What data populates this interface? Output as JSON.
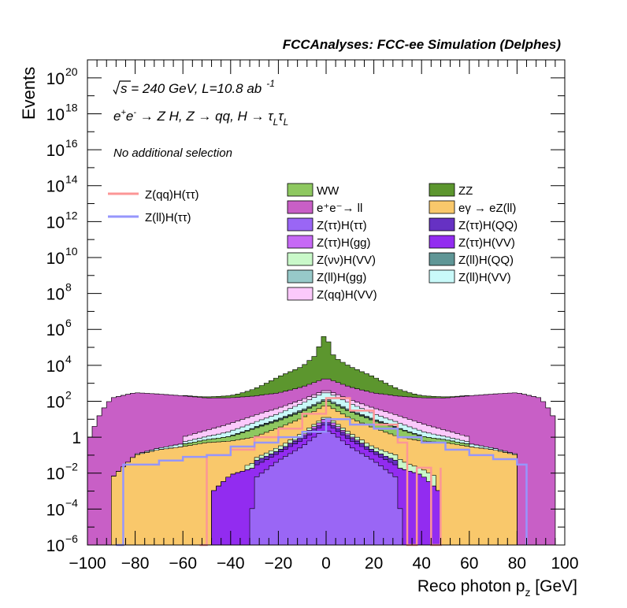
{
  "header": {
    "title": "FCCAnalyses: FCC-ee Simulation (Delphes)",
    "energy_sqrt": "s",
    "energy_rest": " = 240 GeV, L=10.8 ab",
    "energy_sup": "-1",
    "process_a": "e",
    "process_b": "e",
    "process_c": " → Z H, Z  → qq, H  → τ",
    "process_sub1": "L",
    "process_tau2": "τ",
    "process_sub2": "L",
    "selection": "No additional selection"
  },
  "colors": {
    "ee_ll": "#c85fc6",
    "egamma": "#f9c86b",
    "ww": "#8ec860",
    "zz": "#5c962e",
    "ztt_htt": "#9a66f5",
    "ztt_hqq": "#6631c3",
    "ztt_hgg": "#c669f5",
    "ztt_hvv": "#922cf0",
    "znn_hvv": "#c9f8c9",
    "zll_hqq": "#5f9696",
    "zll_hgg": "#97c9c9",
    "zll_hvv": "#c9f9f9",
    "zqq_hvv": "#fbc9fb",
    "sig_qq": "#fc9696",
    "sig_ll": "#9696fc"
  },
  "chart_data": {
    "type": "area",
    "xlabel_main": "Reco photon p",
    "xlabel_sub": "z",
    "xlabel_unit": " [GeV]",
    "ylabel": "Events",
    "xlim": [
      -100,
      100
    ],
    "ylim": [
      1e-06,
      1e+21
    ],
    "y_scale": "log",
    "x_ticks": [
      "−100",
      "−80",
      "−60",
      "−40",
      "−20",
      "0",
      "20",
      "40",
      "60",
      "80",
      "100"
    ],
    "y_ticks": [
      {
        "base": "10",
        "exp": "−6"
      },
      {
        "base": "10",
        "exp": "−4"
      },
      {
        "base": "10",
        "exp": "−2"
      },
      {
        "base": "1",
        "exp": ""
      },
      {
        "base": "10",
        "exp": "2"
      },
      {
        "base": "10",
        "exp": "4"
      },
      {
        "base": "10",
        "exp": "6"
      },
      {
        "base": "10",
        "exp": "8"
      },
      {
        "base": "10",
        "exp": "10"
      },
      {
        "base": "10",
        "exp": "12"
      },
      {
        "base": "10",
        "exp": "14"
      },
      {
        "base": "10",
        "exp": "16"
      },
      {
        "base": "10",
        "exp": "18"
      },
      {
        "base": "10",
        "exp": "20"
      }
    ],
    "legend_signals": [
      {
        "label": "Z(qq)H(ττ)",
        "color": "#fc9696"
      },
      {
        "label": "Z(ll)H(ττ)",
        "color": "#9696fc"
      }
    ],
    "legend_backgrounds": [
      {
        "label": "WW",
        "color": "#8ec860"
      },
      {
        "label": "ZZ",
        "color": "#5c962e"
      },
      {
        "label": "e⁺e⁻→ ll",
        "color": "#c85fc6"
      },
      {
        "label": "eγ  → eZ(ll)",
        "color": "#f9c86b"
      },
      {
        "label": "Z(ττ)H(ττ)",
        "color": "#9a66f5"
      },
      {
        "label": "Z(ττ)H(QQ)",
        "color": "#6631c3"
      },
      {
        "label": "Z(ττ)H(gg)",
        "color": "#c669f5"
      },
      {
        "label": "Z(ττ)H(VV)",
        "color": "#922cf0"
      },
      {
        "label": "Z(νν)H(VV)",
        "color": "#c9f8c9"
      },
      {
        "label": "Z(ll)H(QQ)",
        "color": "#5f9696"
      },
      {
        "label": "Z(ll)H(gg)",
        "color": "#97c9c9"
      },
      {
        "label": "Z(ll)H(VV)",
        "color": "#c9f9f9"
      },
      {
        "label": "Z(qq)H(VV)",
        "color": "#fbc9fb"
      }
    ],
    "stack_series": [
      {
        "name": "Z(ττ)H(ττ)",
        "key": "ztt_htt",
        "x": [
          -34,
          -30,
          -20,
          -10,
          -5,
          -2,
          0,
          2,
          5,
          10,
          20,
          30,
          34
        ],
        "y": [
          0,
          0.005,
          0.05,
          0.3,
          1,
          2,
          2.5,
          2,
          1,
          0.3,
          0.05,
          0.005,
          0
        ]
      },
      {
        "name": "Z(ττ)H(VV)",
        "key": "ztt_hvv",
        "x": [
          -48,
          -40,
          -30,
          -20,
          -10,
          0,
          10,
          20,
          30,
          40,
          48
        ],
        "y": [
          0.0008,
          0.008,
          0.02,
          0.08,
          0.4,
          3,
          0.4,
          0.08,
          0.02,
          0.008,
          0.0008
        ]
      },
      {
        "name": "Z(ττ)H(QQ)",
        "key": "ztt_hqq",
        "x": [
          -30,
          -20,
          -10,
          0,
          10,
          20,
          30
        ],
        "y": [
          0.02,
          0.05,
          0.3,
          2,
          0.3,
          0.05,
          0.02
        ]
      },
      {
        "name": "Z(ττ)H(gg)",
        "key": "ztt_hgg",
        "x": [
          -15,
          -5,
          0,
          5,
          15
        ],
        "y": [
          0.05,
          1,
          5,
          1,
          0.05
        ]
      },
      {
        "name": "Z(νν)H(VV)",
        "key": "znn_hvv",
        "x": [
          -34,
          -30,
          -20,
          -10,
          0,
          10,
          20,
          30,
          34,
          40,
          46
        ],
        "y": [
          0.01,
          0.02,
          0.1,
          0.5,
          3,
          0.5,
          0.1,
          0.05,
          0.02,
          0.01,
          0.005
        ]
      },
      {
        "name": "eγ  → eZ(ll)",
        "key": "egamma",
        "x": [
          -90,
          -80,
          -70,
          -60,
          -50,
          -40,
          -30,
          -20,
          -10,
          0,
          10,
          20,
          30,
          40,
          50,
          60,
          70,
          80
        ],
        "y": [
          0.005,
          0.1,
          0.2,
          0.3,
          0.5,
          0.6,
          1,
          3,
          10,
          50,
          10,
          3,
          1,
          0.6,
          0.5,
          0.3,
          0.2,
          0.1
        ]
      },
      {
        "name": "WW",
        "key": "ww",
        "x": [
          -60,
          -40,
          -30,
          -20,
          -10,
          0,
          10,
          20,
          30,
          40,
          60
        ],
        "y": [
          0.1,
          0.5,
          2,
          5,
          15,
          50,
          15,
          5,
          2,
          0.5,
          0.1
        ]
      },
      {
        "name": "Z(ll)H(QQ)",
        "key": "zll_hqq",
        "x": [
          -40,
          -20,
          0,
          20,
          40
        ],
        "y": [
          0.1,
          1,
          5,
          1,
          0.1
        ]
      },
      {
        "name": "Z(ll)H(gg)",
        "key": "zll_hgg",
        "x": [
          -30,
          -15,
          0,
          15,
          30
        ],
        "y": [
          0.2,
          2,
          20,
          2,
          0.2
        ]
      },
      {
        "name": "Z(ll)H(VV)",
        "key": "zll_hvv",
        "x": [
          -80,
          -70,
          -40,
          -20,
          0,
          20,
          40,
          70,
          80
        ],
        "y": [
          0.01,
          0.05,
          1,
          10,
          200,
          10,
          1,
          0.05,
          0.01
        ]
      },
      {
        "name": "Z(qq)H(VV)",
        "key": "zqq_hvv",
        "x": [
          -60,
          -30,
          0,
          30,
          60
        ],
        "y": [
          0.5,
          10,
          100,
          10,
          0.5
        ]
      },
      {
        "name": "e⁺e⁻→ ll",
        "key": "ee_ll",
        "x": [
          -100,
          -96,
          -94,
          -92,
          -90,
          -80,
          -70,
          -60,
          -50,
          -40,
          -30,
          -20,
          -10,
          0,
          10,
          20,
          30,
          40,
          50,
          60,
          70,
          80,
          90,
          92,
          94,
          96
        ],
        "y": [
          0.5,
          8,
          30,
          60,
          150,
          300,
          250,
          200,
          150,
          150,
          180,
          250,
          500,
          1500,
          500,
          250,
          180,
          150,
          150,
          200,
          250,
          300,
          150,
          60,
          30,
          8
        ]
      },
      {
        "name": "ZZ",
        "key": "zz",
        "x": [
          -60,
          -40,
          -30,
          -20,
          -10,
          -5,
          -2,
          0,
          2,
          5,
          10,
          20,
          30,
          40,
          60
        ],
        "y": [
          10,
          50,
          300,
          2000,
          8000,
          30000,
          200000,
          800000,
          50000,
          20000,
          8000,
          2000,
          300,
          50,
          10
        ]
      }
    ],
    "line_series": [
      {
        "name": "Z(qq)H(ττ)",
        "key": "sig_qq",
        "x": [
          -53,
          -50,
          -40,
          -30,
          -20,
          -10,
          0,
          10,
          20,
          30,
          34,
          38,
          44,
          48
        ],
        "y": [
          1e-06,
          0.1,
          0.2,
          1,
          3,
          20,
          150,
          30,
          5,
          0.5,
          1e-06,
          0.02,
          1e-06,
          0.02
        ]
      },
      {
        "name": "Z(ll)H(ττ)",
        "key": "sig_ll",
        "x": [
          -88,
          -85,
          -80,
          -70,
          -60,
          -50,
          -40,
          -30,
          -20,
          -10,
          0,
          10,
          20,
          30,
          40,
          50,
          60,
          70,
          80,
          82,
          84
        ],
        "y": [
          1e-06,
          0.03,
          0.03,
          0.05,
          0.08,
          0.1,
          0.3,
          0.5,
          1,
          2,
          10,
          5,
          3,
          1,
          0.5,
          0.2,
          0.1,
          0.06,
          0.03,
          0.03,
          1e-06
        ]
      }
    ]
  }
}
